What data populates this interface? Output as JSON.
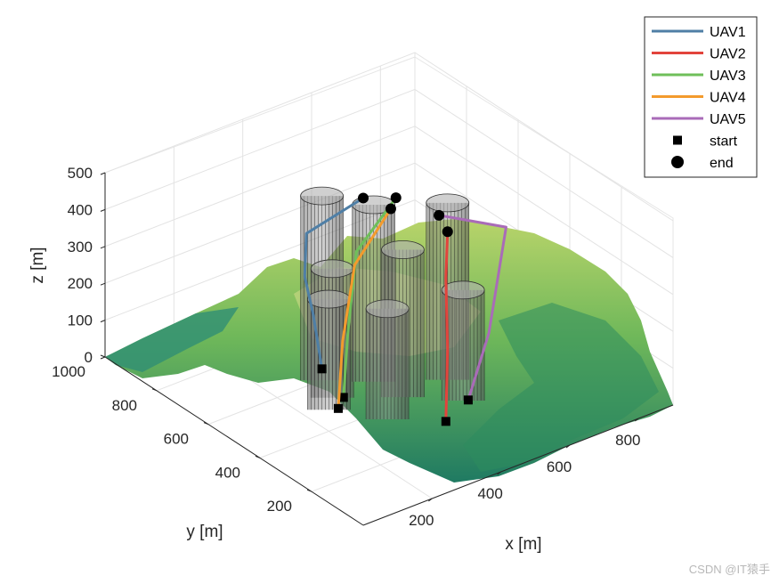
{
  "chart_data": {
    "type": "line",
    "xlabel": "x [m]",
    "ylabel": "y [m]",
    "zlabel": "z [m]",
    "x_ticks": [
      "200",
      "400",
      "600",
      "800"
    ],
    "y_ticks": [
      "200",
      "400",
      "600",
      "800",
      "1000"
    ],
    "z_ticks": [
      "0",
      "100",
      "200",
      "300",
      "400",
      "500"
    ],
    "xlim": [
      0,
      900
    ],
    "ylim": [
      0,
      1000
    ],
    "zlim": [
      0,
      500
    ],
    "grid": true,
    "view": "3d",
    "legend_position": "top-right",
    "series": [
      {
        "name": "UAV1",
        "color": "#4f7fa6",
        "points": [
          [
            300,
            560,
            60
          ],
          [
            290,
            580,
            200
          ],
          [
            280,
            600,
            300
          ],
          [
            300,
            620,
            400
          ],
          [
            420,
            560,
            480
          ]
        ]
      },
      {
        "name": "UAV2",
        "color": "#e2443c",
        "points": [
          [
            420,
            240,
            20
          ],
          [
            440,
            260,
            200
          ],
          [
            450,
            280,
            380
          ],
          [
            500,
            340,
            460
          ]
        ]
      },
      {
        "name": "UAV3",
        "color": "#6fbf5a",
        "points": [
          [
            280,
            450,
            40
          ],
          [
            300,
            460,
            200
          ],
          [
            340,
            480,
            400
          ],
          [
            470,
            500,
            490
          ]
        ]
      },
      {
        "name": "UAV4",
        "color": "#f39b2d",
        "points": [
          [
            250,
            430,
            30
          ],
          [
            270,
            440,
            200
          ],
          [
            320,
            460,
            380
          ],
          [
            440,
            480,
            480
          ]
        ]
      },
      {
        "name": "UAV5",
        "color": "#a96bb8",
        "points": [
          [
            500,
            260,
            40
          ],
          [
            560,
            260,
            200
          ],
          [
            640,
            300,
            440
          ],
          [
            520,
            400,
            470
          ]
        ]
      }
    ],
    "legend": [
      "UAV1",
      "UAV2",
      "UAV3",
      "UAV4",
      "UAV5",
      "start",
      "end"
    ],
    "markers": {
      "start_label": "start",
      "end_label": "end"
    }
  },
  "watermark": "CSDN @IT猿手"
}
